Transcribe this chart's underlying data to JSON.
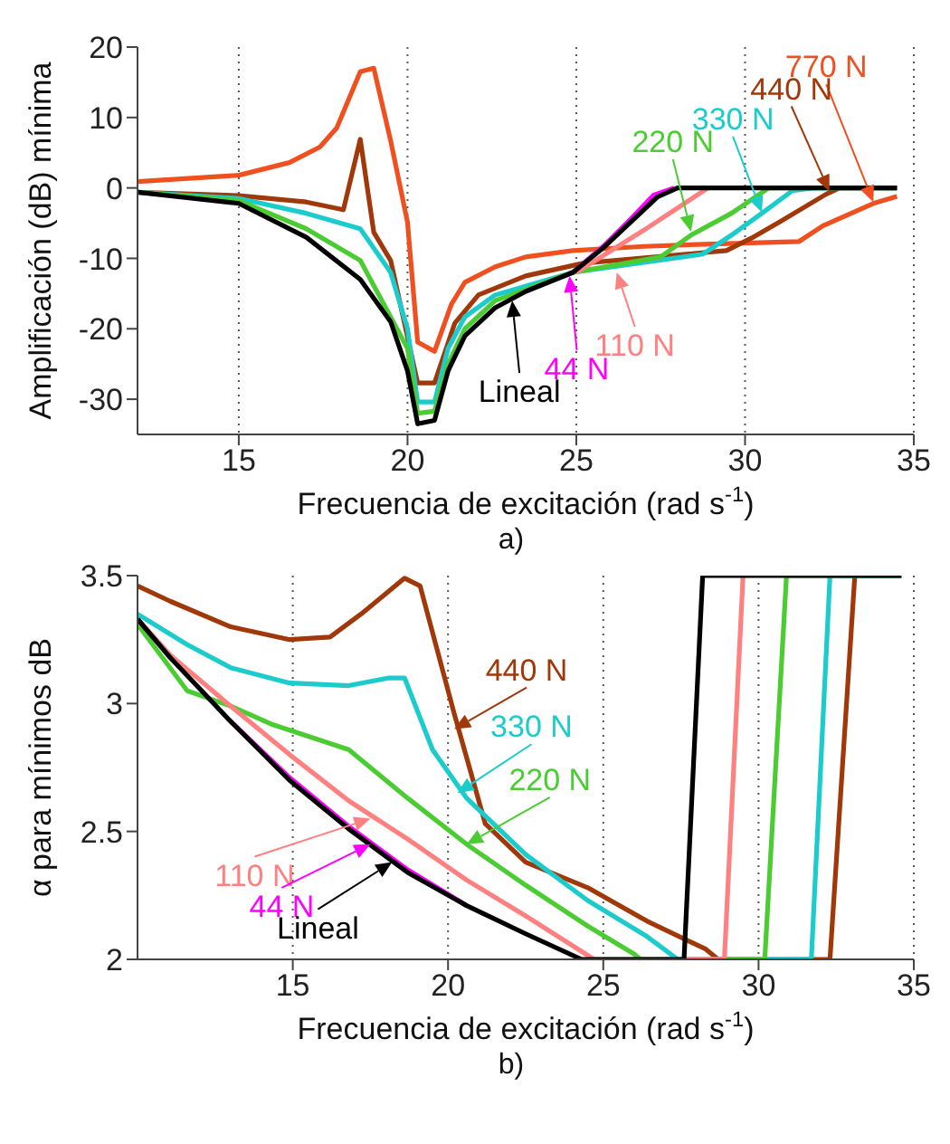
{
  "chart_data": [
    {
      "type": "line",
      "title": "a)",
      "xlabel": "Frecuencia de excitación (rad s$^{-1}$)",
      "ylabel": "Amplificación (dB) mínima",
      "xlim": [
        12,
        35
      ],
      "ylim": [
        -35,
        20
      ],
      "xticks": [
        15,
        20,
        25,
        30,
        35
      ],
      "yticks": [
        -30,
        -20,
        -10,
        0,
        10,
        20
      ],
      "grid": "x",
      "series": [
        {
          "color": "#f05020",
          "x": [
            12,
            15,
            16.5,
            17.4,
            17.9,
            18.6,
            19,
            19.5,
            20,
            20.3,
            20.8,
            21.3,
            21.7,
            22.6,
            23.5,
            24.9,
            27,
            28.8,
            31.6,
            32.3,
            33.8,
            34.5
          ],
          "values": [
            0.9,
            1.8,
            3.6,
            5.8,
            8.5,
            16.5,
            17,
            6.7,
            -4.9,
            -21.9,
            -23.2,
            -16.5,
            -13.4,
            -11.2,
            -9.8,
            -8.9,
            -8.3,
            -8,
            -7.6,
            -5.4,
            -2.2,
            -1.2
          ]
        },
        {
          "color": "#a0380a",
          "x": [
            12,
            15,
            17,
            18.1,
            18.6,
            19,
            19.5,
            20.3,
            20.8,
            21.4,
            22.1,
            23.5,
            25.2,
            29.45,
            30.2,
            31,
            32.4,
            32.8,
            34.5
          ],
          "values": [
            -0.6,
            -1.1,
            -2,
            -3.1,
            6.9,
            -6.3,
            -10.3,
            -27.7,
            -27.7,
            -19.2,
            -15.2,
            -12.5,
            -10.7,
            -8.9,
            -7.1,
            -4.9,
            -0.9,
            0,
            0
          ]
        },
        {
          "color": "#1ccbcb",
          "x": [
            12,
            15,
            17,
            18.6,
            19.5,
            20,
            20.3,
            20.8,
            21.2,
            21.7,
            22.6,
            24.9,
            28.75,
            29.6,
            30.5,
            31.4,
            32,
            34.5
          ],
          "values": [
            -0.6,
            -1.5,
            -3.6,
            -5.8,
            -12,
            -20,
            -30.4,
            -30.4,
            -22.8,
            -18.3,
            -15.2,
            -12,
            -9.4,
            -6.7,
            -3.6,
            -0.4,
            0,
            0
          ]
        },
        {
          "color": "#4ccc33",
          "x": [
            12,
            15,
            17,
            18.6,
            20,
            20.3,
            20.8,
            21.2,
            21.7,
            22.6,
            24.9,
            27.5,
            28.4,
            29.6,
            30.7,
            34.5
          ],
          "values": [
            -0.6,
            -1.8,
            -5.8,
            -10.3,
            -22.8,
            -32,
            -31.7,
            -25,
            -20,
            -16,
            -12,
            -9.8,
            -6.7,
            -3.6,
            0,
            0
          ]
        },
        {
          "color": "#ff8080",
          "x": [
            25,
            27,
            28.9
          ],
          "values": [
            -12,
            -6,
            0
          ]
        },
        {
          "color": "#ff00ff",
          "x": [
            24.9,
            25.8,
            26.6,
            27.3,
            27.9
          ],
          "values": [
            -12,
            -8.3,
            -4.5,
            -1,
            0
          ]
        },
        {
          "color": "#000000",
          "x": [
            12,
            15,
            17,
            18.6,
            19.5,
            20,
            20.3,
            20.8,
            21.2,
            21.7,
            22.6,
            23.5,
            24.9,
            25.8,
            26.6,
            27.4,
            28,
            34.5
          ],
          "values": [
            -0.6,
            -2.2,
            -7,
            -13,
            -19,
            -26,
            -33.5,
            -33,
            -26,
            -21,
            -17,
            -14.7,
            -12,
            -8.5,
            -4.9,
            -1.3,
            0,
            0
          ]
        }
      ],
      "annotations": [
        {
          "text": "770 N",
          "x": 33.8,
          "y": -2
        },
        {
          "text": "440 N",
          "x": 32.5,
          "y": -0.5
        },
        {
          "text": "330 N",
          "x": 30.5,
          "y": -3.5
        },
        {
          "text": "220 N",
          "x": 28.4,
          "y": -6.2
        },
        {
          "text": "110 N",
          "x": 26.2,
          "y": -12
        },
        {
          "text": "44 N",
          "x": 24.8,
          "y": -12.5
        },
        {
          "text": "Lineal",
          "x": 23.1,
          "y": -16
        }
      ]
    },
    {
      "type": "line",
      "title": "b)",
      "xlabel": "Frecuencia de excitación (rad s$^{-1}$)",
      "ylabel": "α para mínimos dB",
      "xlim": [
        10,
        35
      ],
      "ylim": [
        2,
        3.5
      ],
      "xticks": [
        15,
        20,
        25,
        30,
        35
      ],
      "yticks": [
        2,
        2.5,
        3,
        3.5
      ],
      "grid": "x",
      "series": [
        {
          "color": "#a0380a",
          "x": [
            10,
            11.05,
            13,
            14.9,
            16.2,
            17.2,
            18.1,
            18.6,
            19.1,
            20.2,
            21.2,
            22.5,
            24.5,
            26.4,
            28.3,
            28.7,
            32.3,
            33.1,
            34.6
          ],
          "values": [
            3.46,
            3.4,
            3.3,
            3.25,
            3.26,
            3.35,
            3.44,
            3.49,
            3.46,
            2.96,
            2.53,
            2.38,
            2.28,
            2.15,
            2.04,
            2,
            2,
            3.5,
            3.5
          ]
        },
        {
          "color": "#1ccbcb",
          "x": [
            10,
            11.6,
            13,
            14.9,
            16.8,
            18.1,
            18.6,
            19.5,
            20.6,
            22.5,
            24.5,
            26.4,
            27.4,
            31.7,
            32.3,
            34.6
          ],
          "values": [
            3.35,
            3.23,
            3.14,
            3.08,
            3.07,
            3.1,
            3.1,
            2.82,
            2.63,
            2.41,
            2.23,
            2.09,
            2,
            2,
            3.5,
            3.5
          ]
        },
        {
          "color": "#4ccc33",
          "x": [
            10,
            11.6,
            13,
            14.3,
            16.8,
            18.7,
            20.6,
            22.5,
            24.5,
            26,
            26.2,
            30.2,
            30.9,
            34.6
          ],
          "values": [
            3.31,
            3.05,
            2.99,
            2.92,
            2.82,
            2.63,
            2.45,
            2.29,
            2.13,
            2.02,
            2,
            2,
            3.5,
            3.5
          ]
        },
        {
          "color": "#ff8080",
          "x": [
            10,
            11.05,
            13,
            14.9,
            16.8,
            18.7,
            20.6,
            22.5,
            24.7,
            28.9,
            29.5
          ],
          "values": [
            3.33,
            3.19,
            2.99,
            2.8,
            2.62,
            2.47,
            2.31,
            2.17,
            2,
            2,
            3.5
          ]
        },
        {
          "color": "#ff00ff",
          "x": [
            13,
            14.9,
            16.8,
            18.7,
            20.6
          ],
          "values": [
            2.93,
            2.71,
            2.52,
            2.35,
            2.21
          ]
        },
        {
          "color": "#000000",
          "x": [
            10,
            11.05,
            13,
            14.9,
            16.8,
            18.7,
            20.6,
            22.5,
            24.3,
            27.6,
            28.2,
            34.6
          ],
          "values": [
            3.33,
            3.18,
            2.93,
            2.7,
            2.51,
            2.34,
            2.21,
            2.1,
            2,
            2,
            3.5,
            3.5
          ]
        }
      ],
      "annotations": [
        {
          "text": "440 N",
          "x": 20.2,
          "y": 2.9
        },
        {
          "text": "330 N",
          "x": 20.3,
          "y": 2.65
        },
        {
          "text": "220 N",
          "x": 20.6,
          "y": 2.45
        },
        {
          "text": "110 N",
          "x": 17.5,
          "y": 2.55
        },
        {
          "text": "44 N",
          "x": 17.5,
          "y": 2.45
        },
        {
          "text": "Lineal",
          "x": 18.2,
          "y": 2.38
        }
      ]
    }
  ]
}
